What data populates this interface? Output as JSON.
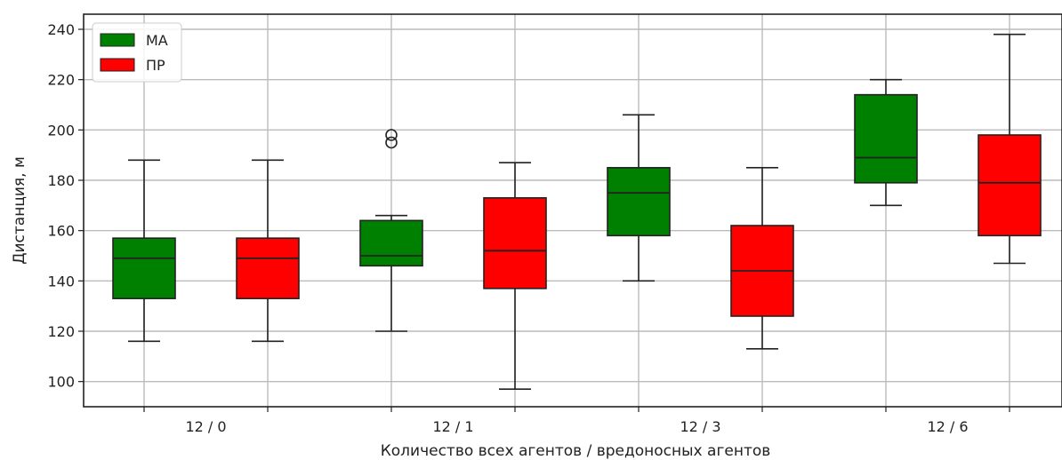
{
  "chart_data": {
    "type": "boxplot",
    "title": "",
    "xlabel": "Количество всех агентов / вредоносных агентов",
    "ylabel": "Дистанция, м",
    "ylim": [
      90,
      246
    ],
    "yticks": [
      100,
      120,
      140,
      160,
      180,
      200,
      220,
      240
    ],
    "grid": true,
    "legend_position": "top-left",
    "categories": [
      "12 / 0",
      "12 / 1",
      "12 / 3",
      "12 / 6"
    ],
    "series": [
      {
        "name": "МА",
        "color": "#008000",
        "boxes": [
          {
            "whisker_low": 116,
            "q1": 133,
            "median": 149,
            "q3": 157,
            "whisker_high": 188,
            "outliers": []
          },
          {
            "whisker_low": 120,
            "q1": 146,
            "median": 150,
            "q3": 164,
            "whisker_high": 166,
            "outliers": [
              195,
              198
            ]
          },
          {
            "whisker_low": 140,
            "q1": 158,
            "median": 175,
            "q3": 185,
            "whisker_high": 206,
            "outliers": []
          },
          {
            "whisker_low": 170,
            "q1": 179,
            "median": 189,
            "q3": 214,
            "whisker_high": 220,
            "outliers": []
          }
        ]
      },
      {
        "name": "ПР",
        "color": "#ff0000",
        "boxes": [
          {
            "whisker_low": 116,
            "q1": 133,
            "median": 149,
            "q3": 157,
            "whisker_high": 188,
            "outliers": []
          },
          {
            "whisker_low": 97,
            "q1": 137,
            "median": 152,
            "q3": 173,
            "whisker_high": 187,
            "outliers": []
          },
          {
            "whisker_low": 113,
            "q1": 126,
            "median": 144,
            "q3": 162,
            "whisker_high": 185,
            "outliers": []
          },
          {
            "whisker_low": 147,
            "q1": 158,
            "median": 179,
            "q3": 198,
            "whisker_high": 238,
            "outliers": []
          }
        ]
      }
    ]
  }
}
